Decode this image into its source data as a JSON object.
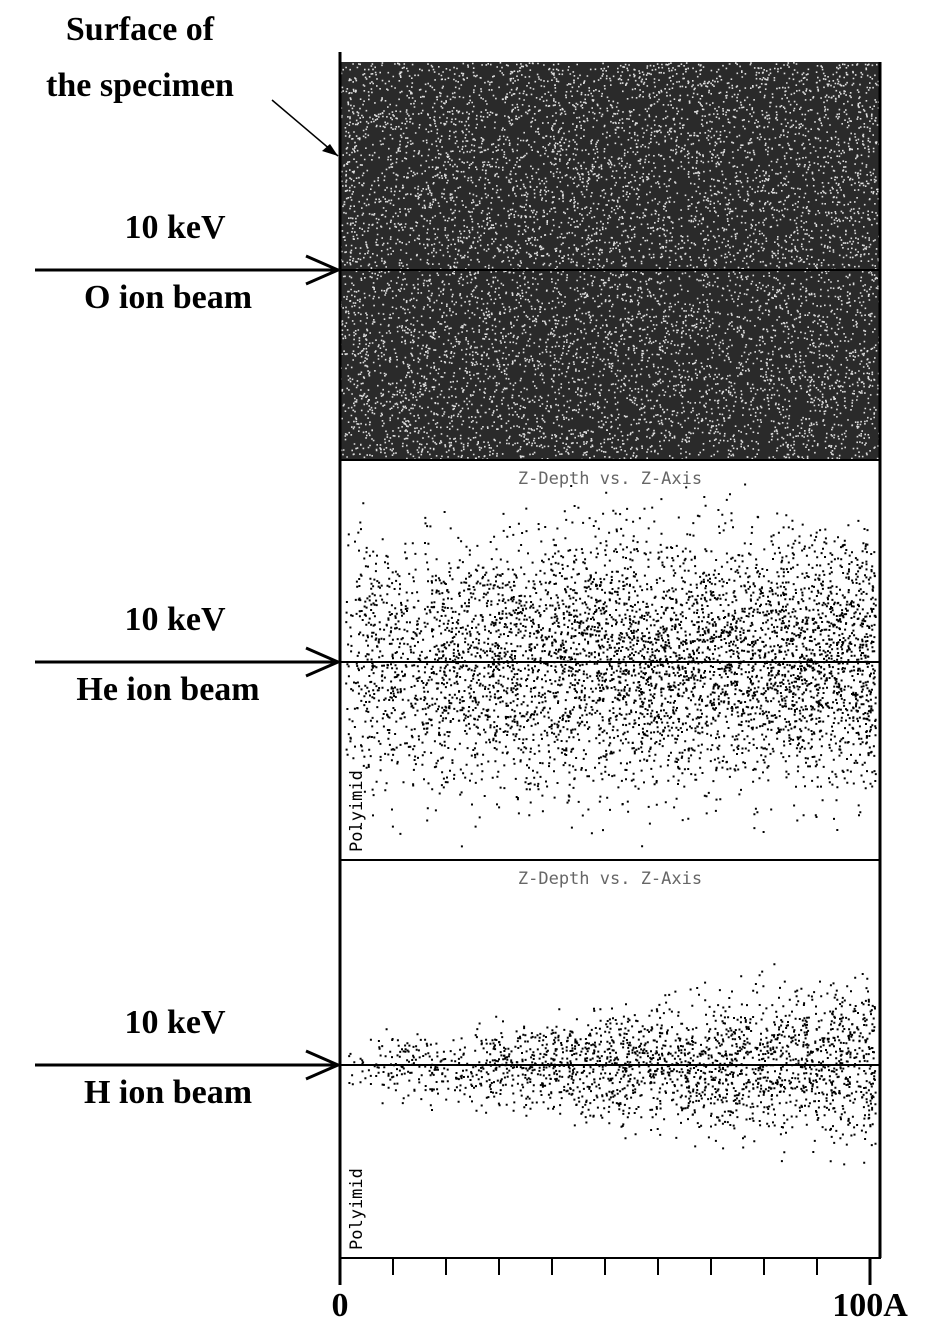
{
  "labels": {
    "surface": [
      "Surface of",
      "the specimen"
    ],
    "beams": [
      {
        "energy": "10 keV",
        "ion": "O ion beam"
      },
      {
        "energy": "10 keV",
        "ion": "He ion beam"
      },
      {
        "energy": "10 keV",
        "ion": "H ion beam"
      }
    ]
  },
  "panels": [
    {
      "material": "Polyimid",
      "title": "Z-Depth vs. Z-Axis"
    },
    {
      "material": "Polyimid",
      "title": "Z-Depth vs. Z-Axis"
    }
  ],
  "axis": {
    "start_label": "0",
    "end_label": "100A",
    "tick_count": 10
  }
}
